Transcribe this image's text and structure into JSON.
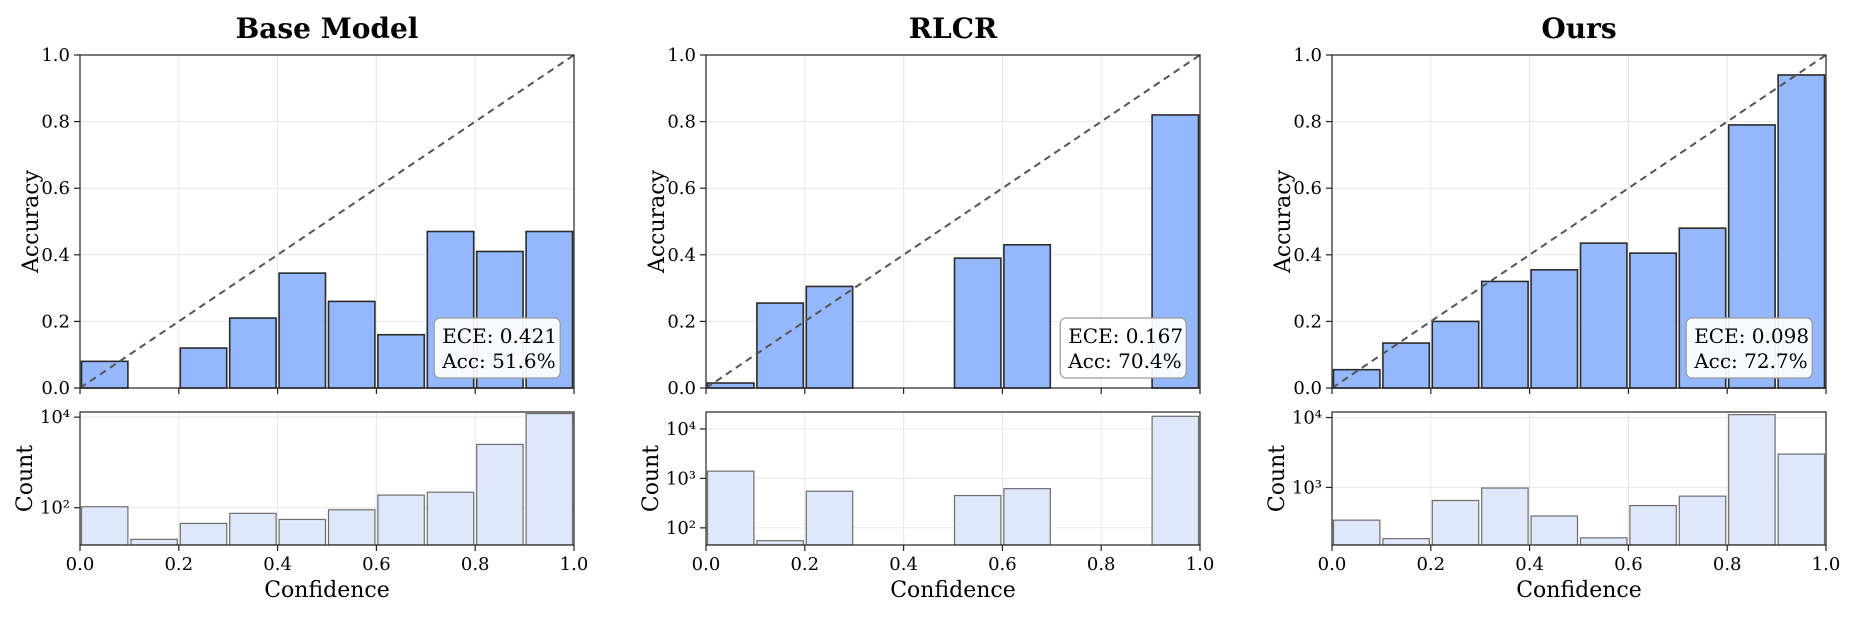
{
  "chart_data": [
    {
      "type": "bar",
      "title": "Base Model",
      "xlabel": "Confidence",
      "ylabel": "Accuracy",
      "xlim": [
        0,
        1
      ],
      "ylim": [
        0,
        1
      ],
      "bin_edges": [
        0.0,
        0.1,
        0.2,
        0.3,
        0.4,
        0.5,
        0.6,
        0.7,
        0.8,
        0.9,
        1.0
      ],
      "accuracy": [
        0.08,
        null,
        0.12,
        0.21,
        0.345,
        0.26,
        0.16,
        0.47,
        0.41,
        0.47
      ],
      "reference_line": "perfect calibration (diagonal)",
      "ece_text": "ECE: 0.421",
      "acc_text": "Acc: 51.6%",
      "count_ylabel": "Count",
      "count_scale": "log",
      "count_ylim": [
        15,
        13000
      ],
      "count_ticks": [
        {
          "v": 100,
          "label": "10²"
        },
        {
          "v": 10000,
          "label": "10⁴"
        }
      ],
      "counts": [
        105,
        20,
        45,
        75,
        55,
        90,
        190,
        220,
        2500,
        12000
      ],
      "x_ticks": [
        "0.0",
        "0.2",
        "0.4",
        "0.6",
        "0.8",
        "1.0"
      ],
      "y_ticks": [
        "0.0",
        "0.2",
        "0.4",
        "0.6",
        "0.8",
        "1.0"
      ],
      "grid": true
    },
    {
      "type": "bar",
      "title": "RLCR",
      "xlabel": "Confidence",
      "ylabel": "Accuracy",
      "xlim": [
        0,
        1
      ],
      "ylim": [
        0,
        1
      ],
      "bin_edges": [
        0.0,
        0.1,
        0.2,
        0.3,
        0.4,
        0.5,
        0.6,
        0.7,
        0.8,
        0.9,
        1.0
      ],
      "accuracy": [
        0.015,
        0.255,
        0.305,
        null,
        null,
        0.39,
        0.43,
        null,
        null,
        0.82
      ],
      "reference_line": "perfect calibration (diagonal)",
      "ece_text": "ECE: 0.167",
      "acc_text": "Acc: 70.4%",
      "count_ylabel": "Count",
      "count_scale": "log",
      "count_ylim": [
        45,
        22000
      ],
      "count_ticks": [
        {
          "v": 100,
          "label": "10²"
        },
        {
          "v": 1000,
          "label": "10³"
        },
        {
          "v": 10000,
          "label": "10⁴"
        }
      ],
      "counts": [
        1400,
        55,
        550,
        null,
        null,
        450,
        620,
        null,
        null,
        18000
      ],
      "x_ticks": [
        "0.0",
        "0.2",
        "0.4",
        "0.6",
        "0.8",
        "1.0"
      ],
      "y_ticks": [
        "0.0",
        "0.2",
        "0.4",
        "0.6",
        "0.8",
        "1.0"
      ],
      "grid": true
    },
    {
      "type": "bar",
      "title": "Ours",
      "xlabel": "Confidence",
      "ylabel": "Accuracy",
      "xlim": [
        0,
        1
      ],
      "ylim": [
        0,
        1
      ],
      "bin_edges": [
        0.0,
        0.1,
        0.2,
        0.3,
        0.4,
        0.5,
        0.6,
        0.7,
        0.8,
        0.9,
        1.0
      ],
      "accuracy": [
        0.055,
        0.135,
        0.2,
        0.32,
        0.355,
        0.435,
        0.405,
        0.48,
        0.79,
        0.94
      ],
      "reference_line": "perfect calibration (diagonal)",
      "ece_text": "ECE: 0.098",
      "acc_text": "Acc: 72.7%",
      "count_ylabel": "Count",
      "count_scale": "log",
      "count_ylim": [
        150,
        12000
      ],
      "count_ticks": [
        {
          "v": 1000,
          "label": "10³"
        },
        {
          "v": 10000,
          "label": "10⁴"
        }
      ],
      "counts": [
        340,
        185,
        650,
        980,
        390,
        190,
        550,
        750,
        11000,
        3000
      ],
      "x_ticks": [
        "0.0",
        "0.2",
        "0.4",
        "0.6",
        "0.8",
        "1.0"
      ],
      "y_ticks": [
        "0.0",
        "0.2",
        "0.4",
        "0.6",
        "0.8",
        "1.0"
      ],
      "grid": true
    }
  ],
  "colors": {
    "accuracy_bar": "#94b8fb",
    "count_bar": "#dfe8fb",
    "bar_edge": "#2b2b2b",
    "diagonal": "#555555",
    "grid": "#e6e6e6"
  }
}
